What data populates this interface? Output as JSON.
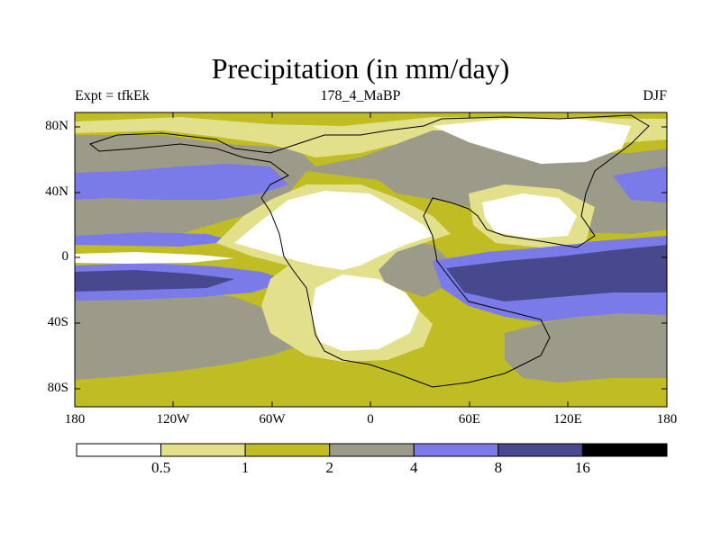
{
  "title": "Precipitation (in mm/day)",
  "subtitle_left": "Expt = tfkEk",
  "subtitle_center": "178_4_MaBP",
  "subtitle_right": "DJF",
  "y_ticks": [
    "80N",
    "40N",
    "0",
    "40S",
    "80S"
  ],
  "x_ticks": [
    "180",
    "120W",
    "60W",
    "0",
    "60E",
    "120E",
    "180"
  ],
  "colorbar": {
    "colors": [
      "#ffffff",
      "#e2e08a",
      "#c0bc24",
      "#9c9a88",
      "#7a7ae8",
      "#48488e",
      "#000000"
    ],
    "labels": [
      "0.5",
      "1",
      "2",
      "4",
      "8",
      "16"
    ]
  }
}
